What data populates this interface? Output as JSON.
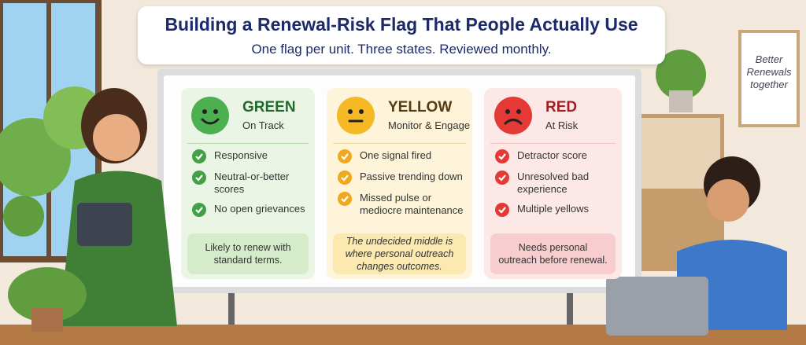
{
  "title": "Building a Renewal-Risk Flag That People Actually Use",
  "subtitle": "One flag per unit. Three states. Reviewed monthly.",
  "wall_sign": "Better Renewals together",
  "panels": [
    {
      "label": "GREEN",
      "status": "On Track",
      "items": [
        "Responsive",
        "Neutral-or-better scores",
        "No open grievances"
      ],
      "note": "Likely to renew with standard terms."
    },
    {
      "label": "YELLOW",
      "status": "Monitor & Engage",
      "items": [
        "One signal fired",
        "Passive trending down",
        "Missed pulse or mediocre maintenance"
      ],
      "note": "The undecided middle is where personal outreach changes outcomes."
    },
    {
      "label": "RED",
      "status": "At Risk",
      "items": [
        "Detractor score",
        "Unresolved bad experience",
        "Multiple yellows"
      ],
      "note": "Needs personal outreach before renewal."
    }
  ]
}
